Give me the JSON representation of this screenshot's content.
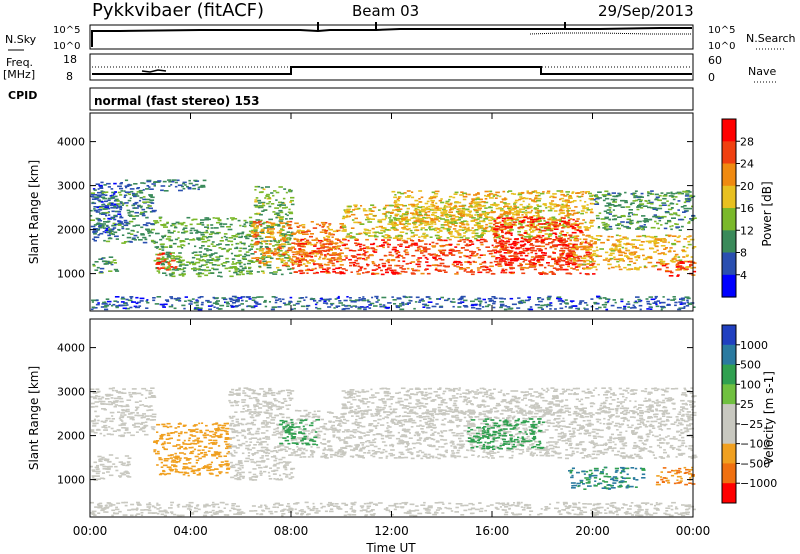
{
  "header": {
    "station": "Pykkvibaer (fitACF)",
    "beam": "Beam 03",
    "date": "29/Sep/2013"
  },
  "top_panels": {
    "nsky_label": "N.Sky",
    "nsky_ticks": [
      "10^5",
      "10^0"
    ],
    "nsearch_label": "N.Search",
    "nsearch_ticks": [
      "10^5",
      "10^0"
    ],
    "freq_label": "Freq.",
    "freq_unit": "[MHz]",
    "freq_ticks": [
      "18",
      "8"
    ],
    "nave_label": "Nave",
    "nave_ticks": [
      "60",
      "0"
    ],
    "cpid_label": "CPID",
    "cpid_text": "normal (fast stereo) 153"
  },
  "chart_data": [
    {
      "type": "heatmap",
      "name": "power-panel",
      "xlabel": "",
      "ylabel": "Slant Range [km]",
      "xlim": [
        0,
        24
      ],
      "ylim": [
        150,
        4650
      ],
      "yticks": [
        "1000",
        "2000",
        "3000",
        "4000"
      ],
      "colorbar_label": "Power [dB]",
      "colorbar_ticks": [
        "4",
        "8",
        "12",
        "16",
        "20",
        "24",
        "28"
      ],
      "colorbar_colors": [
        "#0000ff",
        "#2a4fb0",
        "#3a8a5a",
        "#7ab82a",
        "#e8c020",
        "#f08a10",
        "#f04010",
        "#ff0000"
      ],
      "colorbar_range": [
        0,
        32
      ],
      "bands": [
        {
          "x": [
            0.0,
            1.2
          ],
          "y": [
            1900,
            3100
          ],
          "level": 6
        },
        {
          "x": [
            0.0,
            2.5
          ],
          "y": [
            1700,
            2900
          ],
          "level": 9
        },
        {
          "x": [
            0.0,
            1.0
          ],
          "y": [
            1000,
            1400
          ],
          "level": 10
        },
        {
          "x": [
            2.5,
            6.5
          ],
          "y": [
            950,
            2300
          ],
          "level": 12
        },
        {
          "x": [
            2.6,
            3.4
          ],
          "y": [
            1100,
            1500
          ],
          "level": 26
        },
        {
          "x": [
            1.2,
            4.5
          ],
          "y": [
            2900,
            3150
          ],
          "level": 8
        },
        {
          "x": [
            6.5,
            8.0
          ],
          "y": [
            1000,
            3000
          ],
          "level": 13
        },
        {
          "x": [
            6.4,
            10.0
          ],
          "y": [
            1200,
            2200
          ],
          "level": 22
        },
        {
          "x": [
            8.0,
            20.0
          ],
          "y": [
            1000,
            1800
          ],
          "level": 26
        },
        {
          "x": [
            10.0,
            19.0
          ],
          "y": [
            1800,
            2600
          ],
          "level": 17
        },
        {
          "x": [
            12.0,
            20.0
          ],
          "y": [
            2000,
            2900
          ],
          "level": 19
        },
        {
          "x": [
            16.0,
            19.5
          ],
          "y": [
            1200,
            2300
          ],
          "level": 28
        },
        {
          "x": [
            19.0,
            24.0
          ],
          "y": [
            1100,
            1900
          ],
          "level": 19
        },
        {
          "x": [
            22.5,
            24.0
          ],
          "y": [
            950,
            1300
          ],
          "level": 27
        },
        {
          "x": [
            20.0,
            24.0
          ],
          "y": [
            2000,
            2900
          ],
          "level": 11
        },
        {
          "x": [
            0.0,
            24.0
          ],
          "y": [
            200,
            500
          ],
          "level": 7
        }
      ]
    },
    {
      "type": "heatmap",
      "name": "velocity-panel",
      "xlabel": "Time UT",
      "ylabel": "Slant Range [km]",
      "xlim": [
        0,
        24
      ],
      "ylim": [
        150,
        4650
      ],
      "xticks": [
        "00:00",
        "04:00",
        "08:00",
        "12:00",
        "16:00",
        "20:00",
        "00:00"
      ],
      "yticks": [
        "1000",
        "2000",
        "3000",
        "4000"
      ],
      "colorbar_label": "Velocity [m s-1]",
      "colorbar_ticks": [
        "1000",
        "500",
        "100",
        "25",
        "-25",
        "-100",
        "-500",
        "-1000"
      ],
      "colorbar_colors": [
        "#2040c0",
        "#2a7aa0",
        "#30a050",
        "#70c040",
        "#c8c8c0",
        "#c8c8c0",
        "#f0a020",
        "#f07010",
        "#ff0000"
      ],
      "bands": [
        {
          "x": [
            0.0,
            2.5
          ],
          "y": [
            2000,
            3100
          ],
          "v": 0
        },
        {
          "x": [
            0.0,
            1.5
          ],
          "y": [
            1000,
            1600
          ],
          "v": 0
        },
        {
          "x": [
            2.5,
            5.5
          ],
          "y": [
            1100,
            2300
          ],
          "v": -200
        },
        {
          "x": [
            5.5,
            8.0
          ],
          "y": [
            1000,
            3100
          ],
          "v": 0
        },
        {
          "x": [
            8.0,
            24.0
          ],
          "y": [
            1500,
            2600
          ],
          "v": 0
        },
        {
          "x": [
            10.0,
            24.0
          ],
          "y": [
            2500,
            3100
          ],
          "v": 0
        },
        {
          "x": [
            7.5,
            9.0
          ],
          "y": [
            1800,
            2400
          ],
          "v": 150
        },
        {
          "x": [
            15.0,
            18.0
          ],
          "y": [
            1700,
            2400
          ],
          "v": 150
        },
        {
          "x": [
            19.0,
            22.0
          ],
          "y": [
            800,
            1300
          ],
          "v": 300
        },
        {
          "x": [
            22.5,
            24.0
          ],
          "y": [
            900,
            1300
          ],
          "v": -300
        },
        {
          "x": [
            0.0,
            24.0
          ],
          "y": [
            200,
            500
          ],
          "v": 0
        }
      ]
    }
  ]
}
